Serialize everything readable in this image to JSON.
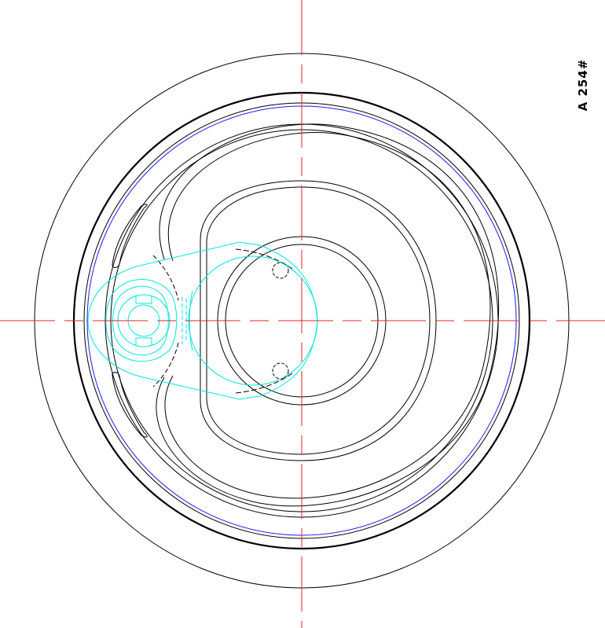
{
  "drawing": {
    "type": "CAD top view of can end with pull tab",
    "label": "A 254#",
    "colors": {
      "background": "#ffffff",
      "outline": "#000000",
      "centerline": "#e8202a",
      "seam_ring": "#1a1aff",
      "pull_tab": "#00e5e5"
    }
  }
}
